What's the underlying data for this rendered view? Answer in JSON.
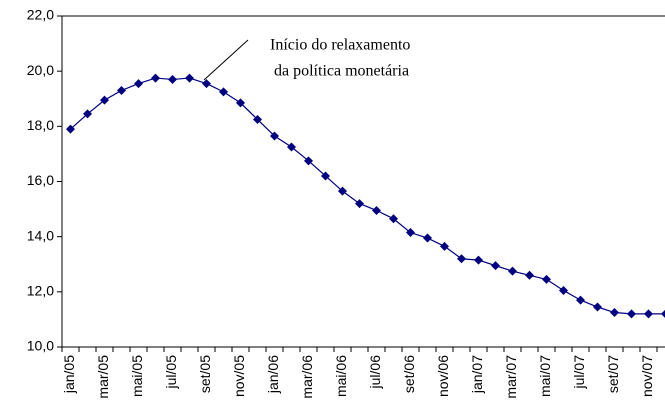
{
  "chart_data": {
    "type": "line",
    "annotations": [
      "Início do relaxamento",
      "da política monetária"
    ],
    "categories": [
      "jan/05",
      null,
      "mar/05",
      null,
      "mai/05",
      null,
      "jul/05",
      null,
      "set/05",
      null,
      "nov/05",
      null,
      "jan/06",
      null,
      "mar/06",
      null,
      "mai/06",
      null,
      "jul/06",
      null,
      "set/06",
      null,
      "nov/06",
      null,
      "jan/07",
      null,
      "mar/07",
      null,
      "mai/07",
      null,
      "jul/07",
      null,
      "set/07",
      null,
      "nov/07",
      null
    ],
    "values": [
      17.9,
      18.45,
      18.95,
      19.3,
      19.55,
      19.75,
      19.7,
      19.75,
      19.55,
      19.25,
      18.85,
      18.25,
      17.65,
      17.25,
      16.75,
      16.2,
      15.65,
      15.2,
      14.95,
      14.65,
      14.15,
      13.95,
      13.65,
      13.2,
      13.15,
      12.95,
      12.75,
      12.6,
      12.45,
      12.05,
      11.7,
      11.45,
      11.25,
      11.2,
      11.2,
      11.2
    ],
    "color": "#000080",
    "ylim": [
      10,
      22
    ],
    "yticks": [
      {
        "value": 10,
        "label": "10,0"
      },
      {
        "value": 12,
        "label": "12,0"
      },
      {
        "value": 14,
        "label": "14,0"
      },
      {
        "value": 16,
        "label": "16,0"
      },
      {
        "value": 18,
        "label": "18,0"
      },
      {
        "value": 20,
        "label": "20,0"
      },
      {
        "value": 22,
        "label": "22,0"
      }
    ],
    "grid": false
  }
}
